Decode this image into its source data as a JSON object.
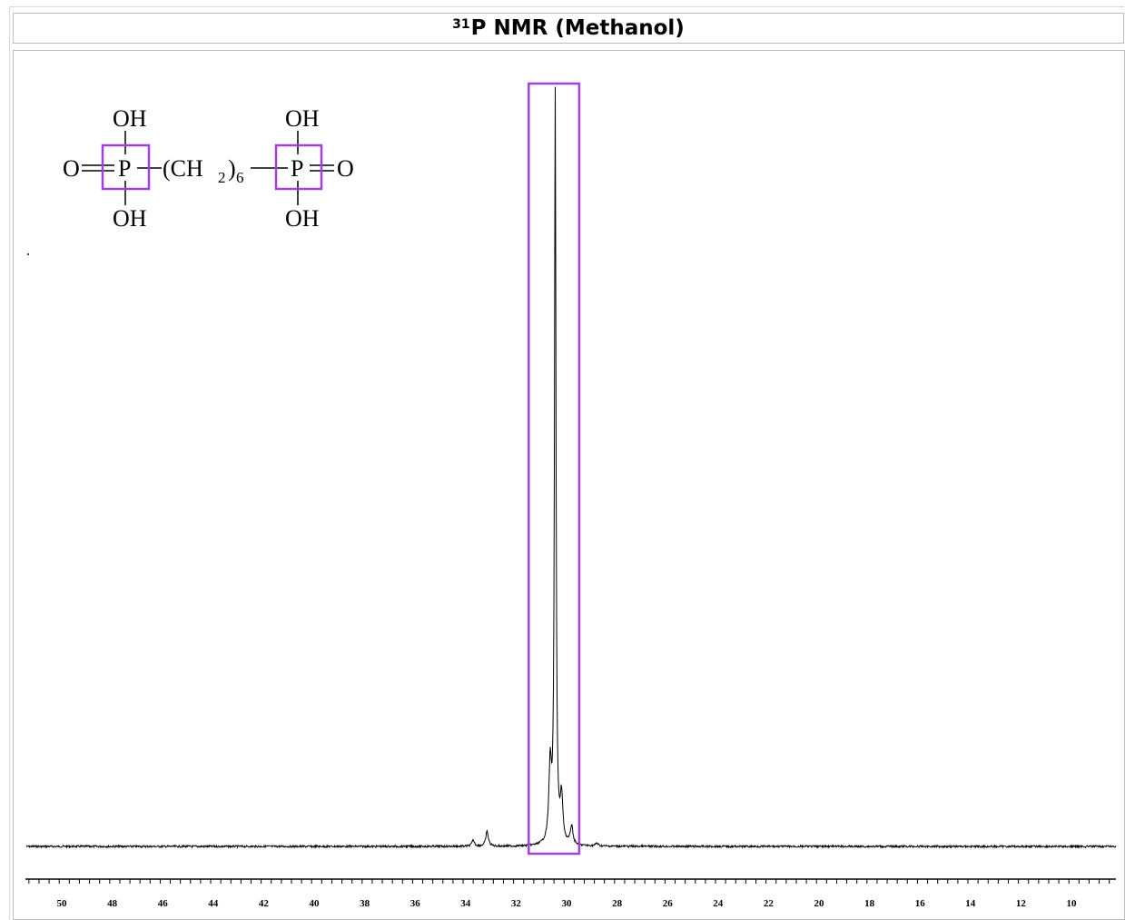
{
  "title": {
    "superscript": "31",
    "text": "P NMR (Methanol)"
  },
  "structure": {
    "oh_top_left": "OH",
    "oh_top_right": "OH",
    "oh_bottom_left": "OH",
    "oh_bottom_right": "OH",
    "o_left": "O",
    "p_left": "P",
    "chain": "(CH",
    "chain_sub": "2",
    "chain_close": ")",
    "chain_count": "6",
    "p_right": "P",
    "o_right": "O",
    "highlight_color": "#a040e0"
  },
  "chart_data": {
    "type": "line",
    "title": "31P NMR (Methanol)",
    "xlabel": "",
    "ylabel": "",
    "x_axis_reversed": true,
    "xlim": [
      51.3,
      8.0
    ],
    "tick_labels": [
      "50",
      "48",
      "46",
      "44",
      "42",
      "40",
      "38",
      "36",
      "34",
      "32",
      "30",
      "28",
      "26",
      "24",
      "22",
      "20",
      "18",
      "16",
      "14",
      "12",
      "10"
    ],
    "major_ticks": [
      50,
      48,
      46,
      44,
      42,
      40,
      38,
      36,
      34,
      32,
      30,
      28,
      26,
      24,
      22,
      20,
      18,
      16,
      14,
      12,
      10
    ],
    "minor_tick_step": 0.4,
    "grid": false,
    "series": [
      {
        "color": "#000000",
        "peaks": [
          {
            "ppm": 30.45,
            "intensity": 1.0
          },
          {
            "ppm": 30.65,
            "intensity": 0.1
          },
          {
            "ppm": 30.2,
            "intensity": 0.06
          },
          {
            "ppm": 29.8,
            "intensity": 0.025
          },
          {
            "ppm": 33.15,
            "intensity": 0.02
          },
          {
            "ppm": 33.7,
            "intensity": 0.008
          },
          {
            "ppm": 28.8,
            "intensity": 0.004
          }
        ]
      }
    ],
    "annotations": [
      {
        "type": "highlight-box",
        "x_range": [
          31.5,
          29.5
        ],
        "color": "#a040e0"
      }
    ]
  }
}
